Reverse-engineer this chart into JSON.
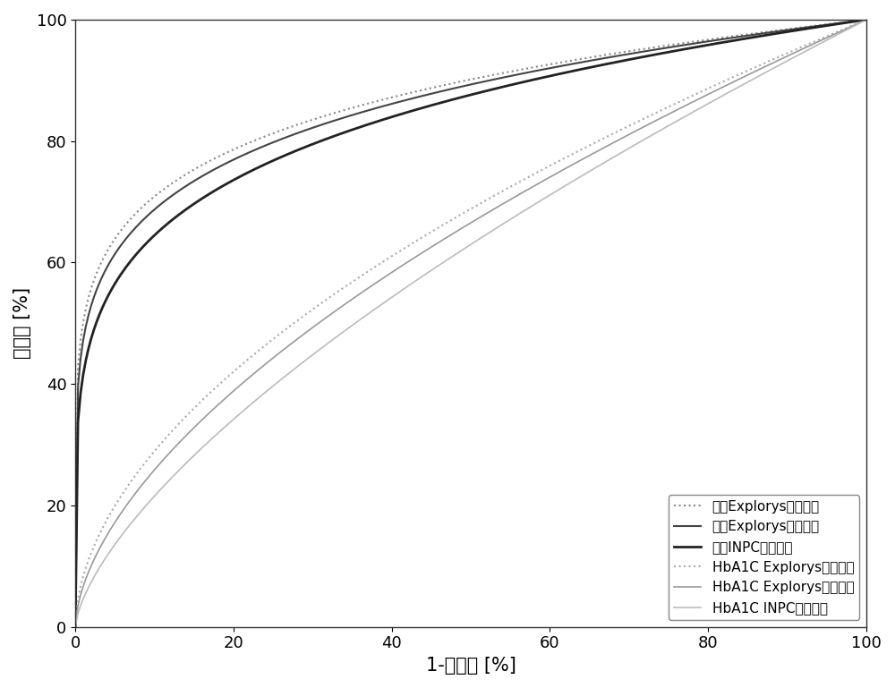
{
  "title": "",
  "xlabel": "1-特异性 [%]",
  "ylabel": "灵敏度 [%]",
  "xlim": [
    0,
    100
  ],
  "ylim": [
    0,
    100
  ],
  "xticks": [
    0,
    20,
    40,
    60,
    80,
    100
  ],
  "yticks": [
    0,
    20,
    40,
    60,
    80,
    100
  ],
  "curves": [
    {
      "label": "公开Explorys（教导）",
      "auc": 0.87,
      "color": "#888888",
      "linestyle": "dotted",
      "linewidth": 1.5
    },
    {
      "label": "公开Explorys（验证）",
      "auc": 0.86,
      "color": "#444444",
      "linestyle": "solid",
      "linewidth": 1.5
    },
    {
      "label": "公开INPC（验证）",
      "auc": 0.84,
      "color": "#222222",
      "linestyle": "solid",
      "linewidth": 2.0
    },
    {
      "label": "HbA1C Explorys（教导）",
      "auc": 0.65,
      "color": "#aaaaaa",
      "linestyle": "dotted",
      "linewidth": 1.5
    },
    {
      "label": "HbA1C Explorys（验证）",
      "auc": 0.63,
      "color": "#999999",
      "linestyle": "solid",
      "linewidth": 1.2
    },
    {
      "label": "HbA1C INPC（验证）",
      "auc": 0.6,
      "color": "#bbbbbb",
      "linestyle": "solid",
      "linewidth": 1.2
    }
  ],
  "legend_loc": "lower right",
  "background_color": "#ffffff",
  "font_size": 13,
  "label_font_size": 15
}
